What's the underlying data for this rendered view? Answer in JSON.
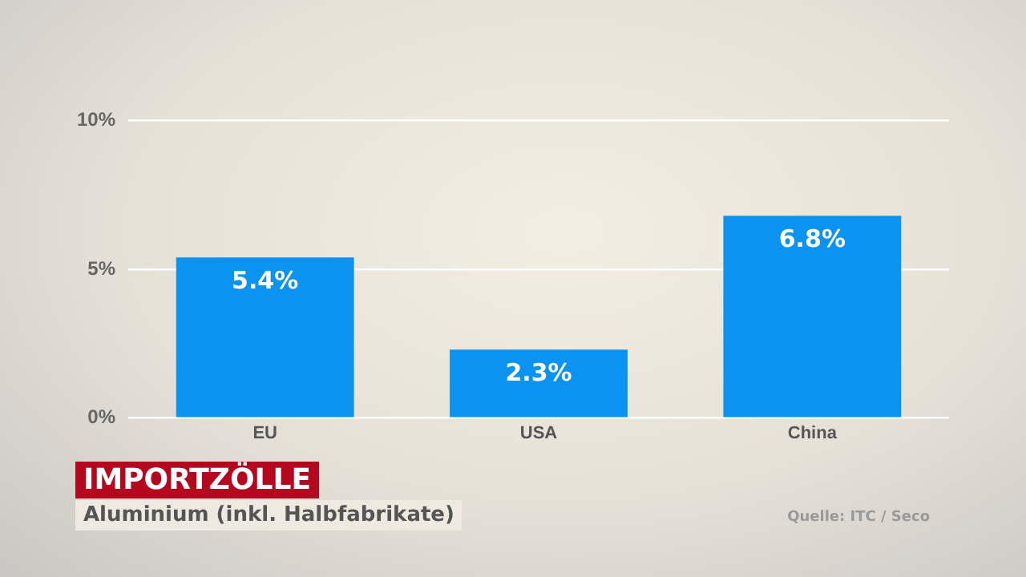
{
  "chart_data": {
    "type": "bar",
    "title": "IMPORTZÖLLE",
    "subtitle": "Aluminium (inkl. Halbfabrikate)",
    "annotations": [
      "Quelle: ITC / Seco"
    ],
    "categories": [
      "EU",
      "USA",
      "China"
    ],
    "series": [
      {
        "color": "#0a93f0",
        "values": [
          5.4,
          2.3,
          6.8
        ],
        "value_labels": [
          "5.4%",
          "2.3%",
          "6.8%"
        ]
      }
    ],
    "ylim": [
      0,
      10
    ],
    "yticks": [
      {
        "value": 0,
        "label": "0%"
      },
      {
        "value": 5,
        "label": "5%"
      },
      {
        "value": 10,
        "label": "10%"
      }
    ],
    "grid": "y",
    "legend": false
  }
}
